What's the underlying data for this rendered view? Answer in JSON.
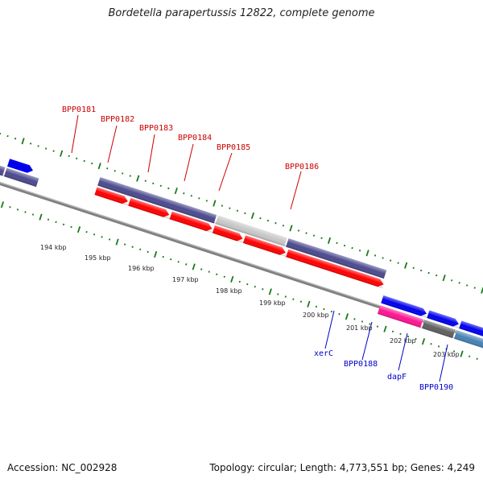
{
  "title": "Bordetella parapertussis 12822, complete genome",
  "footer": {
    "accession": "Accession: NC_002928",
    "stats": "Topology: circular; Length: 4,773,551 bp; Genes: 4,249"
  },
  "colors": {
    "backbone": "#808080",
    "tick": "#1a7a1a",
    "top_label": "#cc0000",
    "bottom_label": "#0000cc",
    "cds_red": "#ff0000",
    "gene_purple": "#4b4a8e",
    "gene_grey": "#c8c8c8",
    "cds_blue": "#0000ee",
    "pink": "#ff1493",
    "dark_grey": "#606060",
    "steel_blue": "#4682b4",
    "olive": "#6b8e23"
  },
  "scale": {
    "unit": "kbp",
    "labels": [
      "194 kbp",
      "195 kbp",
      "196 kbp",
      "197 kbp",
      "198 kbp",
      "199 kbp",
      "200 kbp",
      "201 kbp",
      "202 kbp",
      "203 kbp"
    ]
  },
  "top_labels": [
    "BPP0181",
    "BPP0182",
    "BPP0183",
    "BPP0184",
    "BPP0185",
    "BPP0186"
  ],
  "bottom_labels": [
    "xerC",
    "BPP0188",
    "dapF",
    "BPP0190"
  ]
}
